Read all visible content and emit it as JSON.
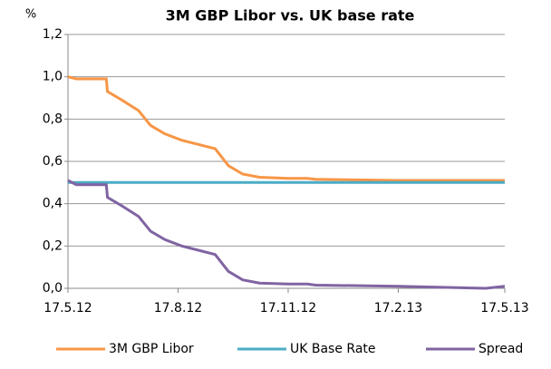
{
  "chart_data": {
    "type": "line",
    "title": "3M GBP Libor vs. UK base rate",
    "y_label": "%",
    "x": [
      "2012-05-17",
      "2012-05-24",
      "2012-06-18",
      "2012-06-19",
      "2012-07-01",
      "2012-07-15",
      "2012-07-25",
      "2012-08-06",
      "2012-08-20",
      "2012-09-03",
      "2012-09-17",
      "2012-09-28",
      "2012-10-10",
      "2012-10-24",
      "2012-11-17",
      "2012-12-03",
      "2012-12-10",
      "2013-02-17",
      "2013-05-01",
      "2013-05-17"
    ],
    "series": [
      {
        "name": "3M GBP Libor",
        "color": "#f79646",
        "values": [
          1.0,
          0.99,
          0.99,
          0.93,
          0.89,
          0.84,
          0.77,
          0.73,
          0.7,
          0.68,
          0.66,
          0.58,
          0.54,
          0.525,
          0.52,
          0.52,
          0.515,
          0.51,
          0.51,
          0.51
        ]
      },
      {
        "name": "UK Base Rate",
        "color": "#4bacc6",
        "values": [
          0.5,
          0.5,
          0.5,
          0.5,
          0.5,
          0.5,
          0.5,
          0.5,
          0.5,
          0.5,
          0.5,
          0.5,
          0.5,
          0.5,
          0.5,
          0.5,
          0.5,
          0.5,
          0.5,
          0.5
        ]
      },
      {
        "name": "Spread",
        "color": "#8064a2",
        "values": [
          0.51,
          0.49,
          0.49,
          0.43,
          0.39,
          0.34,
          0.27,
          0.23,
          0.2,
          0.18,
          0.16,
          0.08,
          0.04,
          0.025,
          0.02,
          0.02,
          0.015,
          0.01,
          0.0,
          0.01
        ]
      }
    ],
    "xlim": [
      "2012-05-17",
      "2013-05-17"
    ],
    "xticks": [
      {
        "value": "2012-05-17",
        "label": "17.5.12"
      },
      {
        "value": "2012-08-17",
        "label": "17.8.12"
      },
      {
        "value": "2012-11-17",
        "label": "17.11.12"
      },
      {
        "value": "2013-02-17",
        "label": "17.2.13"
      },
      {
        "value": "2013-05-17",
        "label": "17.5.13"
      }
    ],
    "ylim": [
      0,
      1.2
    ],
    "yticks": [
      {
        "value": 0,
        "label": "0,0"
      },
      {
        "value": 0.2,
        "label": "0,2"
      },
      {
        "value": 0.4,
        "label": "0,4"
      },
      {
        "value": 0.6,
        "label": "0,6"
      },
      {
        "value": 0.8,
        "label": "0,8"
      },
      {
        "value": 1.0,
        "label": "1,0"
      },
      {
        "value": 1.2,
        "label": "1,2"
      }
    ],
    "grid": true,
    "legend": "bottom"
  }
}
